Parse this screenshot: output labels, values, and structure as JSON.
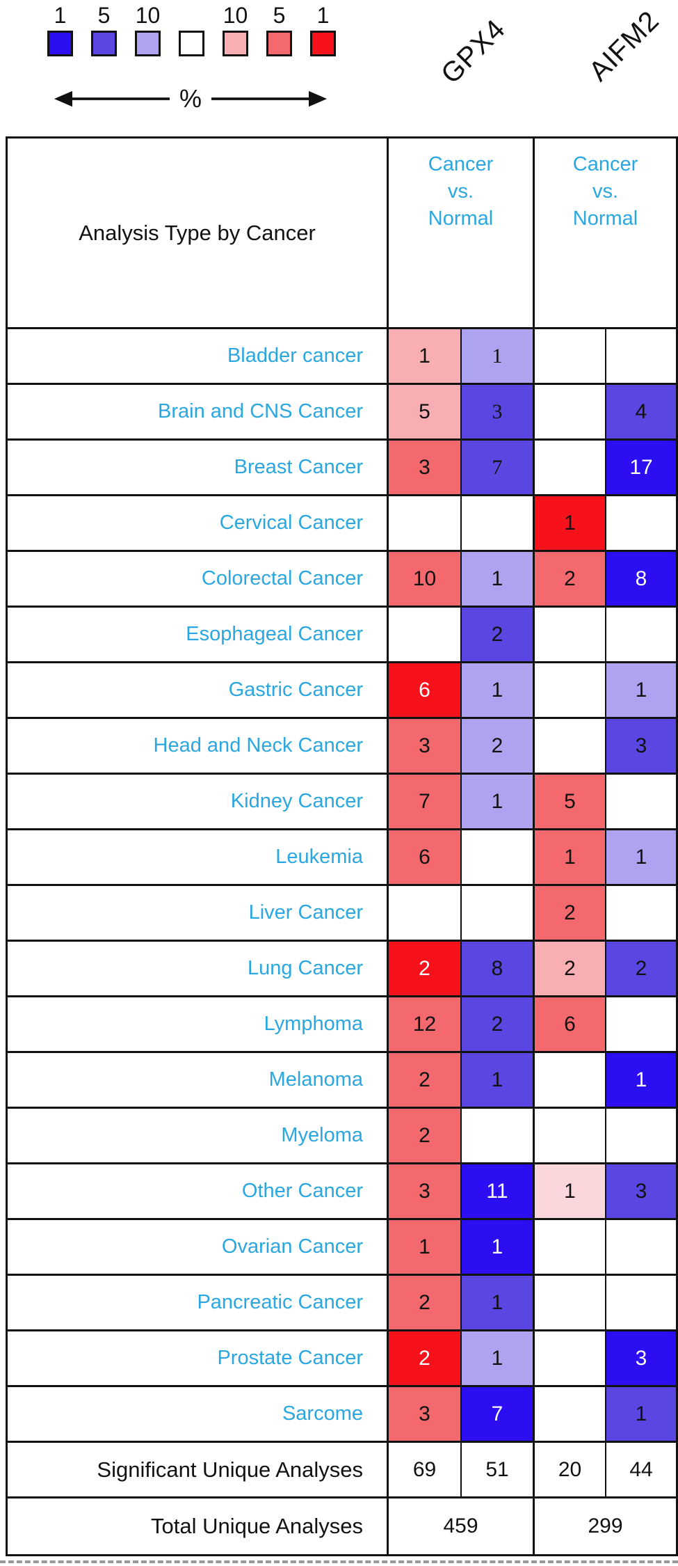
{
  "legend": {
    "percent_label": "%",
    "tiers": [
      {
        "label": "1",
        "color": "#2B0EF1"
      },
      {
        "label": "5",
        "color": "#5A46E1"
      },
      {
        "label": "10",
        "color": "#AEA3F0"
      },
      {
        "label": "",
        "color": "#FFFFFF"
      },
      {
        "label": "10",
        "color": "#F8AEB2"
      },
      {
        "label": "5",
        "color": "#F4696E"
      },
      {
        "label": "1",
        "color": "#F6111B"
      }
    ]
  },
  "genes": [
    "GPX4",
    "AIFM2"
  ],
  "colors": {
    "cyan_text": "#2AA7E0",
    "border": "#111111",
    "tiers": {
      "b1": "#2B0EF1",
      "b5": "#5A46E1",
      "b10": "#AEA3F0",
      "w": "#FFFFFF",
      "r10l": "#FBD7DB",
      "r10": "#F8AEB2",
      "r5": "#F4696E",
      "r1": "#F6111B"
    }
  },
  "table": {
    "corner_label": "Analysis Type by Cancer",
    "group_header": "Cancer\nvs.\nNormal",
    "rows": [
      {
        "label": "Bladder cancer",
        "cells": [
          {
            "v": "1",
            "t": "r10"
          },
          {
            "v": "1",
            "t": "b10",
            "serif": true
          },
          {
            "v": "",
            "t": "w"
          },
          {
            "v": "",
            "t": "w"
          }
        ]
      },
      {
        "label": "Brain and CNS Cancer",
        "cells": [
          {
            "v": "5",
            "t": "r10"
          },
          {
            "v": "3",
            "t": "b5",
            "serif": true
          },
          {
            "v": "",
            "t": "w"
          },
          {
            "v": "4",
            "t": "b5"
          }
        ]
      },
      {
        "label": "Breast Cancer",
        "cells": [
          {
            "v": "3",
            "t": "r5"
          },
          {
            "v": "7",
            "t": "b5",
            "serif": true
          },
          {
            "v": "",
            "t": "w"
          },
          {
            "v": "17",
            "t": "b1",
            "fg": "w"
          }
        ]
      },
      {
        "label": "Cervical Cancer",
        "cells": [
          {
            "v": "",
            "t": "w"
          },
          {
            "v": "",
            "t": "w"
          },
          {
            "v": "1",
            "t": "r1"
          },
          {
            "v": "",
            "t": "w"
          }
        ]
      },
      {
        "label": "Colorectal Cancer",
        "cells": [
          {
            "v": "10",
            "t": "r5"
          },
          {
            "v": "1",
            "t": "b10"
          },
          {
            "v": "2",
            "t": "r5"
          },
          {
            "v": "8",
            "t": "b1",
            "fg": "w"
          }
        ]
      },
      {
        "label": "Esophageal Cancer",
        "cells": [
          {
            "v": "",
            "t": "w"
          },
          {
            "v": "2",
            "t": "b5"
          },
          {
            "v": "",
            "t": "w"
          },
          {
            "v": "",
            "t": "w"
          }
        ]
      },
      {
        "label": "Gastric Cancer",
        "cells": [
          {
            "v": "6",
            "t": "r1",
            "fg": "w"
          },
          {
            "v": "1",
            "t": "b10"
          },
          {
            "v": "",
            "t": "w"
          },
          {
            "v": "1",
            "t": "b10"
          }
        ]
      },
      {
        "label": "Head and Neck Cancer",
        "cells": [
          {
            "v": "3",
            "t": "r5"
          },
          {
            "v": "2",
            "t": "b10"
          },
          {
            "v": "",
            "t": "w"
          },
          {
            "v": "3",
            "t": "b5"
          }
        ]
      },
      {
        "label": "Kidney Cancer",
        "cells": [
          {
            "v": "7",
            "t": "r5"
          },
          {
            "v": "1",
            "t": "b10"
          },
          {
            "v": "5",
            "t": "r5"
          },
          {
            "v": "",
            "t": "w"
          }
        ]
      },
      {
        "label": "Leukemia",
        "cells": [
          {
            "v": "6",
            "t": "r5"
          },
          {
            "v": "",
            "t": "w"
          },
          {
            "v": "1",
            "t": "r5"
          },
          {
            "v": "1",
            "t": "b10"
          }
        ]
      },
      {
        "label": "Liver Cancer",
        "cells": [
          {
            "v": "",
            "t": "w"
          },
          {
            "v": "",
            "t": "w"
          },
          {
            "v": "2",
            "t": "r5"
          },
          {
            "v": "",
            "t": "w"
          }
        ]
      },
      {
        "label": "Lung Cancer",
        "cells": [
          {
            "v": "2",
            "t": "r1",
            "fg": "w"
          },
          {
            "v": "8",
            "t": "b5"
          },
          {
            "v": "2",
            "t": "r10"
          },
          {
            "v": "2",
            "t": "b5"
          }
        ]
      },
      {
        "label": "Lymphoma",
        "cells": [
          {
            "v": "12",
            "t": "r5"
          },
          {
            "v": "2",
            "t": "b5"
          },
          {
            "v": "6",
            "t": "r5"
          },
          {
            "v": "",
            "t": "w"
          }
        ]
      },
      {
        "label": "Melanoma",
        "cells": [
          {
            "v": "2",
            "t": "r5"
          },
          {
            "v": "1",
            "t": "b5"
          },
          {
            "v": "",
            "t": "w"
          },
          {
            "v": "1",
            "t": "b1",
            "fg": "w"
          }
        ]
      },
      {
        "label": "Myeloma",
        "cells": [
          {
            "v": "2",
            "t": "r5"
          },
          {
            "v": "",
            "t": "w"
          },
          {
            "v": "",
            "t": "w"
          },
          {
            "v": "",
            "t": "w"
          }
        ]
      },
      {
        "label": "Other Cancer",
        "cells": [
          {
            "v": "3",
            "t": "r5"
          },
          {
            "v": "11",
            "t": "b1",
            "fg": "w"
          },
          {
            "v": "1",
            "t": "r10l"
          },
          {
            "v": "3",
            "t": "b5"
          }
        ]
      },
      {
        "label": "Ovarian Cancer",
        "cells": [
          {
            "v": "1",
            "t": "r5"
          },
          {
            "v": "1",
            "t": "b1",
            "fg": "w"
          },
          {
            "v": "",
            "t": "w"
          },
          {
            "v": "",
            "t": "w"
          }
        ]
      },
      {
        "label": "Pancreatic Cancer",
        "cells": [
          {
            "v": "2",
            "t": "r5"
          },
          {
            "v": "1",
            "t": "b5"
          },
          {
            "v": "",
            "t": "w"
          },
          {
            "v": "",
            "t": "w"
          }
        ]
      },
      {
        "label": "Prostate Cancer",
        "cells": [
          {
            "v": "2",
            "t": "r1",
            "fg": "w"
          },
          {
            "v": "1",
            "t": "b10"
          },
          {
            "v": "",
            "t": "w"
          },
          {
            "v": "3",
            "t": "b1",
            "fg": "w"
          }
        ]
      },
      {
        "label": "Sarcome",
        "cells": [
          {
            "v": "3",
            "t": "r5"
          },
          {
            "v": "7",
            "t": "b1",
            "fg": "w"
          },
          {
            "v": "",
            "t": "w"
          },
          {
            "v": "1",
            "t": "b5"
          }
        ]
      }
    ],
    "summary": {
      "significant": {
        "label": "Significant Unique Analyses",
        "values": [
          "69",
          "51",
          "20",
          "44"
        ]
      },
      "total": {
        "label": "Total Unique Analyses",
        "values": [
          "459",
          "299"
        ]
      }
    }
  },
  "chart_data": {
    "type": "heatmap",
    "title": "Oncomine analysis of GPX4 and AIFM2 expression, Cancer vs. Normal",
    "genes": [
      "GPX4",
      "AIFM2"
    ],
    "comparison": "Cancer vs. Normal",
    "row_label_header": "Analysis Type by Cancer",
    "columns": [
      "GPX4 up (red)",
      "GPX4 down (blue)",
      "AIFM2 up (red)",
      "AIFM2 down (blue)"
    ],
    "rows": [
      {
        "cancer": "Bladder cancer",
        "values": [
          1,
          1,
          null,
          null
        ]
      },
      {
        "cancer": "Brain and CNS Cancer",
        "values": [
          5,
          3,
          null,
          4
        ]
      },
      {
        "cancer": "Breast Cancer",
        "values": [
          3,
          7,
          null,
          17
        ]
      },
      {
        "cancer": "Cervical Cancer",
        "values": [
          null,
          null,
          1,
          null
        ]
      },
      {
        "cancer": "Colorectal Cancer",
        "values": [
          10,
          1,
          2,
          8
        ]
      },
      {
        "cancer": "Esophageal Cancer",
        "values": [
          null,
          2,
          null,
          null
        ]
      },
      {
        "cancer": "Gastric Cancer",
        "values": [
          6,
          1,
          null,
          1
        ]
      },
      {
        "cancer": "Head and Neck Cancer",
        "values": [
          3,
          2,
          null,
          3
        ]
      },
      {
        "cancer": "Kidney Cancer",
        "values": [
          7,
          1,
          5,
          null
        ]
      },
      {
        "cancer": "Leukemia",
        "values": [
          6,
          null,
          1,
          1
        ]
      },
      {
        "cancer": "Liver Cancer",
        "values": [
          null,
          null,
          2,
          null
        ]
      },
      {
        "cancer": "Lung Cancer",
        "values": [
          2,
          8,
          2,
          2
        ]
      },
      {
        "cancer": "Lymphoma",
        "values": [
          12,
          2,
          6,
          null
        ]
      },
      {
        "cancer": "Melanoma",
        "values": [
          2,
          1,
          null,
          1
        ]
      },
      {
        "cancer": "Myeloma",
        "values": [
          2,
          null,
          null,
          null
        ]
      },
      {
        "cancer": "Other Cancer",
        "values": [
          3,
          11,
          1,
          3
        ]
      },
      {
        "cancer": "Ovarian Cancer",
        "values": [
          1,
          1,
          null,
          null
        ]
      },
      {
        "cancer": "Pancreatic Cancer",
        "values": [
          2,
          1,
          null,
          null
        ]
      },
      {
        "cancer": "Prostate Cancer",
        "values": [
          2,
          1,
          null,
          3
        ]
      },
      {
        "cancer": "Sarcome",
        "values": [
          3,
          7,
          null,
          1
        ]
      }
    ],
    "significant_unique_analyses": [
      69,
      51,
      20,
      44
    ],
    "total_unique_analyses": [
      459,
      299
    ],
    "legend": {
      "axis_label": "%",
      "blue_percent_labels": [
        1,
        5,
        10
      ],
      "red_percent_labels": [
        10,
        5,
        1
      ],
      "tier_colors": [
        "#2B0EF1",
        "#5A46E1",
        "#AEA3F0",
        "#FFFFFF",
        "#F8AEB2",
        "#F4696E",
        "#F6111B"
      ]
    }
  }
}
